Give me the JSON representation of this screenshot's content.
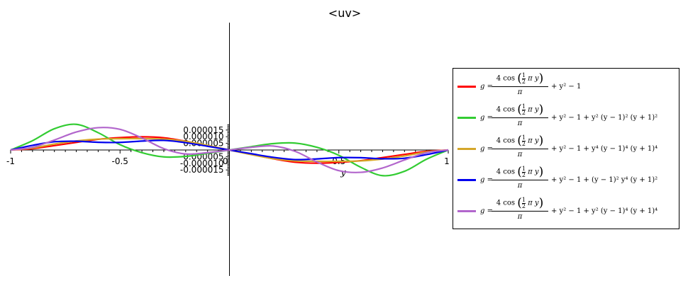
{
  "chart_data": {
    "type": "line",
    "title": "<uv>",
    "xlabel": "y",
    "ylabel": "",
    "xlim": [
      -1,
      1
    ],
    "ylim": [
      -1.93e-05,
      1.93e-05
    ],
    "x_ticks": [
      -1,
      -0.5,
      0,
      0.5,
      1
    ],
    "x_tick_labels": [
      "-1",
      "-0.5",
      "0",
      "0.5",
      "1"
    ],
    "y_ticks": [
      1.5e-05,
      1e-05,
      5e-06,
      -5e-06,
      -1e-05,
      -1.5e-05
    ],
    "y_tick_labels": [
      "0.000015",
      "0.000010",
      "0.000005",
      "-0.000005",
      "-0.000010",
      "-0.000015"
    ],
    "x": [
      -1.0,
      -0.9,
      -0.8,
      -0.7,
      -0.6,
      -0.5,
      -0.4,
      -0.3,
      -0.2,
      -0.1,
      0.0,
      0.1,
      0.2,
      0.3,
      0.4,
      0.5,
      0.6,
      0.7,
      0.8,
      0.9,
      1.0
    ],
    "series": [
      {
        "values": [
          0,
          1e-06,
          3.3e-06,
          5.7e-06,
          8e-06,
          9.3e-06,
          9.9e-06,
          9.2e-06,
          6.6e-06,
          3.3e-06,
          0,
          -3.3e-06,
          -6.6e-06,
          -9.2e-06,
          -9.9e-06,
          -9.3e-06,
          -8e-06,
          -5.7e-06,
          -3.3e-06,
          -1e-06,
          0
        ]
      },
      {
        "values": [
          0,
          7e-06,
          1.6e-05,
          1.93e-05,
          1.3e-05,
          4e-06,
          -2e-06,
          -5.2e-06,
          -4.8e-06,
          -2.5e-06,
          0,
          2.5e-06,
          4.8e-06,
          5.2e-06,
          2e-06,
          -4e-06,
          -1.3e-05,
          -1.93e-05,
          -1.6e-05,
          -7e-06,
          0
        ]
      },
      {
        "values": [
          0,
          1.5e-06,
          4.5e-06,
          6.8e-06,
          8.2e-06,
          8.5e-06,
          8.5e-06,
          8.2e-06,
          6.5e-06,
          3.5e-06,
          0,
          -3.5e-06,
          -6.5e-06,
          -8.2e-06,
          -8.5e-06,
          -8.5e-06,
          -8.2e-06,
          -6.8e-06,
          -4.5e-06,
          -1.5e-06,
          0
        ]
      },
      {
        "values": [
          0,
          3.5e-06,
          6.2e-06,
          6.6e-06,
          5.8e-06,
          5.7e-06,
          6.7e-06,
          7.2e-06,
          5.5e-06,
          2.8e-06,
          0,
          -2.8e-06,
          -5.5e-06,
          -7.2e-06,
          -6.7e-06,
          -5.7e-06,
          -5.8e-06,
          -6.6e-06,
          -6.2e-06,
          -3.5e-06,
          0
        ]
      },
      {
        "values": [
          0,
          2e-06,
          7.5e-06,
          1.35e-05,
          1.68e-05,
          1.55e-05,
          9e-06,
          1e-06,
          -3e-06,
          -2e-06,
          0,
          2e-06,
          3e-06,
          -1e-06,
          -9e-06,
          -1.55e-05,
          -1.68e-05,
          -1.35e-05,
          -7.5e-06,
          -2e-06,
          0
        ]
      }
    ],
    "legend": {
      "position": "right",
      "entries": [
        {
          "color": "#ff0000",
          "lhs": "g =",
          "num_pre": "4 cos",
          "num_half": [
            "1",
            "2"
          ],
          "num_post": "π y",
          "den": "π",
          "rhs": "+ y² − 1"
        },
        {
          "color": "#33cc33",
          "lhs": "g =",
          "num_pre": "4 cos",
          "num_half": [
            "1",
            "2"
          ],
          "num_post": "π y",
          "den": "π",
          "rhs": "+ y² − 1 + y² (y − 1)² (y + 1)²"
        },
        {
          "color": "#d4a62a",
          "lhs": "g =",
          "num_pre": "4 cos",
          "num_half": [
            "1",
            "2"
          ],
          "num_post": "π y",
          "den": "π",
          "rhs": "+ y² − 1 + y⁴ (y − 1)⁴ (y + 1)⁴"
        },
        {
          "color": "#0000ee",
          "lhs": "g =",
          "num_pre": "4 cos",
          "num_half": [
            "1",
            "2"
          ],
          "num_post": "π y",
          "den": "π",
          "rhs": "+ y² − 1 + (y − 1)² y⁴ (y + 1)²"
        },
        {
          "color": "#b266cc",
          "lhs": "g =",
          "num_pre": "4 cos",
          "num_half": [
            "1",
            "2"
          ],
          "num_post": "π y",
          "den": "π",
          "rhs": "+ y² − 1 + y² (y − 1)⁴ (y + 1)⁴"
        }
      ]
    }
  }
}
